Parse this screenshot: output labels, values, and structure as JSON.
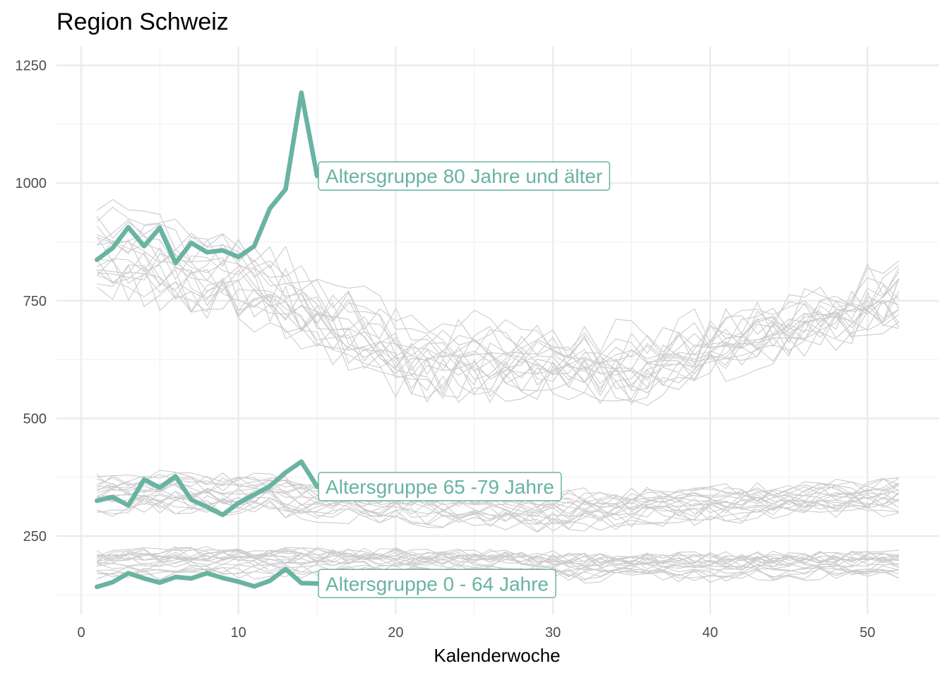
{
  "chart_data": {
    "type": "line",
    "title": "Region Schweiz",
    "xlabel": "Kalenderwoche",
    "ylabel": "",
    "xlim": [
      0,
      52
    ],
    "ylim": [
      130,
      1250
    ],
    "x_ticks": [
      0,
      10,
      20,
      30,
      40,
      50
    ],
    "y_ticks": [
      250,
      500,
      750,
      1000,
      1250
    ],
    "grid": true,
    "highlight_color": "#69b3a2",
    "background_color": "#cccccc",
    "highlight_series": [
      {
        "name": "Altersgruppe 80 Jahre und älter",
        "x": [
          1,
          2,
          3,
          4,
          5,
          6,
          7,
          8,
          9,
          10,
          11,
          12,
          13,
          14,
          15
        ],
        "y": [
          837,
          862,
          906,
          866,
          905,
          830,
          873,
          853,
          857,
          843,
          866,
          946,
          987,
          1192,
          1015
        ]
      },
      {
        "name": "Altersgruppe 65 -79 Jahre",
        "x": [
          1,
          2,
          3,
          4,
          5,
          6,
          7,
          8,
          9,
          10,
          11,
          12,
          13,
          14,
          15
        ],
        "y": [
          325,
          333,
          315,
          370,
          353,
          377,
          327,
          312,
          295,
          320,
          338,
          356,
          385,
          408,
          355
        ]
      },
      {
        "name": "Altersgruppe 0 - 64 Jahre",
        "x": [
          1,
          2,
          3,
          4,
          5,
          6,
          7,
          8,
          9,
          10,
          11,
          12,
          13,
          14,
          15
        ],
        "y": [
          142,
          152,
          171,
          160,
          151,
          163,
          160,
          171,
          161,
          153,
          143,
          155,
          180,
          150,
          149
        ]
      }
    ]
  }
}
